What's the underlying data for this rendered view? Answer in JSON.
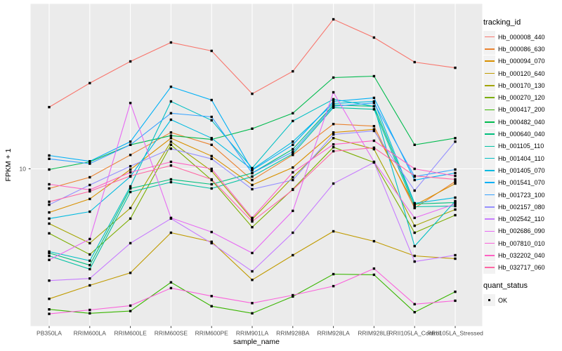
{
  "theme": {
    "background": "#FFFFFF",
    "panel_background": "#EBEBEB",
    "gridline_color": "#FFFFFF",
    "axis_text_color": "#4D4D4D",
    "tick_color": "#333333",
    "point_color": "#000000",
    "legend_key_background": "#F2F2F2"
  },
  "chart_data": {
    "type": "line",
    "title": "",
    "xlabel": "sample_name",
    "ylabel": "FPKM + 1",
    "y_scale": "log10",
    "ylim": [
      1,
      120
    ],
    "grid": "major",
    "legend_position": "right",
    "y_ticks": [
      {
        "value": 10,
        "label": "10"
      }
    ],
    "y_gridlines_at": [
      10
    ],
    "categories": [
      "PB350LA",
      "RRIM600LA",
      "RRIM600LE",
      "RRIM600SE",
      "RRIM600PE",
      "RRIM901LA",
      "RRIM928BA",
      "RRIM928LA",
      "RRIM928LE",
      "RRII105LA_Control",
      "RRII105LA_Stressed"
    ],
    "series": [
      {
        "name": "Hb_000008_440",
        "color": "#F8766D",
        "values": [
          25.1,
          35.9,
          49.6,
          65.8,
          58.0,
          30.6,
          42.8,
          92.9,
          70.8,
          49.1,
          45.1
        ]
      },
      {
        "name": "Hb_000086_630",
        "color": "#EA8331",
        "values": [
          7.46,
          8.82,
          12.3,
          17.2,
          14.3,
          8.46,
          12.3,
          19.5,
          18.9,
          5.57,
          8.28
        ]
      },
      {
        "name": "Hb_000094_070",
        "color": "#D89000",
        "values": [
          5.22,
          6.38,
          9.9,
          15.8,
          12.1,
          7.86,
          10.2,
          17.2,
          18.0,
          5.8,
          8.03
        ]
      },
      {
        "name": "Hb_000120_640",
        "color": "#C09B00",
        "values": [
          1.44,
          1.76,
          2.12,
          3.86,
          3.37,
          1.91,
          2.76,
          3.94,
          3.4,
          2.73,
          2.62
        ]
      },
      {
        "name": "Hb_000170_130",
        "color": "#A3A500",
        "values": [
          4.42,
          3.3,
          5.57,
          15.0,
          9.69,
          4.71,
          8.82,
          15.8,
          13.4,
          4.28,
          5.45
        ]
      },
      {
        "name": "Hb_000270_120",
        "color": "#7CAE00",
        "values": [
          3.82,
          2.79,
          4.76,
          14.3,
          8.46,
          4.19,
          7.38,
          13.8,
          11.0,
          3.86,
          5.01
        ]
      },
      {
        "name": "Hb_000417_200",
        "color": "#39B600",
        "values": [
          1.23,
          1.16,
          1.2,
          1.84,
          1.29,
          1.16,
          1.49,
          2.08,
          2.06,
          1.18,
          1.6
        ]
      },
      {
        "name": "Hb_000482_040",
        "color": "#00BB4E",
        "values": [
          9.9,
          11.1,
          14.3,
          16.4,
          15.5,
          18.2,
          22.9,
          39.0,
          39.8,
          14.3,
          15.8
        ]
      },
      {
        "name": "Hb_000640_040",
        "color": "#00BF7D",
        "values": [
          2.85,
          2.38,
          7.46,
          8.55,
          7.94,
          9.39,
          13.4,
          25.9,
          25.4,
          5.92,
          6.05
        ]
      },
      {
        "name": "Hb_001105_110",
        "color": "#00C1A3",
        "values": [
          2.73,
          2.24,
          7.08,
          8.2,
          7.46,
          8.91,
          12.5,
          24.9,
          24.3,
          5.68,
          5.74
        ]
      },
      {
        "name": "Hb_001404_110",
        "color": "#00BFC4",
        "values": [
          2.91,
          2.54,
          7.7,
          27.3,
          20.6,
          10.1,
          20.4,
          28.2,
          25.4,
          3.16,
          6.18
        ]
      },
      {
        "name": "Hb_001405_070",
        "color": "#00BAE0",
        "values": [
          4.76,
          5.28,
          8.91,
          20.8,
          15.8,
          9.9,
          15.0,
          26.5,
          27.3,
          5.99,
          6.51
        ]
      },
      {
        "name": "Hb_001541_070",
        "color": "#00B0F6",
        "values": [
          12.2,
          11.2,
          15.0,
          34.0,
          27.9,
          9.79,
          14.3,
          27.3,
          28.8,
          8.46,
          9.39
        ]
      },
      {
        "name": "Hb_001723_100",
        "color": "#35A2FF",
        "values": [
          11.6,
          10.8,
          14.3,
          22.9,
          21.7,
          9.39,
          12.9,
          25.4,
          26.7,
          8.91,
          9.9
        ]
      },
      {
        "name": "Hb_002157_080",
        "color": "#9590FF",
        "values": [
          5.86,
          7.86,
          10.4,
          13.5,
          11.6,
          7.38,
          8.46,
          16.7,
          17.6,
          7.23,
          15.0
        ]
      },
      {
        "name": "Hb_002542_110",
        "color": "#C77CFF",
        "values": [
          1.89,
          1.95,
          3.3,
          4.76,
          3.3,
          2.17,
          3.86,
          8.03,
          11.0,
          2.51,
          2.76
        ]
      },
      {
        "name": "Hb_002686_090",
        "color": "#E76BF3",
        "values": [
          2.57,
          3.51,
          26.7,
          4.81,
          3.9,
          2.85,
          5.34,
          31.3,
          11.1,
          4.81,
          5.92
        ]
      },
      {
        "name": "Hb_007810_010",
        "color": "#FA62DB",
        "values": [
          1.15,
          1.22,
          1.3,
          1.69,
          1.5,
          1.35,
          1.52,
          1.74,
          2.26,
          1.33,
          1.4
        ]
      },
      {
        "name": "Hb_032202_040",
        "color": "#FF61C3",
        "values": [
          7.94,
          7.31,
          9.49,
          11.1,
          10.0,
          4.81,
          9.49,
          14.4,
          15.2,
          10.0,
          9.0
        ]
      },
      {
        "name": "Hb_032717_060",
        "color": "#FF67A4",
        "values": [
          6.12,
          7.15,
          9.0,
          10.5,
          8.55,
          4.56,
          7.31,
          13.0,
          13.7,
          9.0,
          8.55
        ]
      }
    ],
    "legend": {
      "tracking_title": "tracking_id",
      "quant_title": "quant_status",
      "quant_items": [
        {
          "label": "OK"
        }
      ]
    }
  }
}
